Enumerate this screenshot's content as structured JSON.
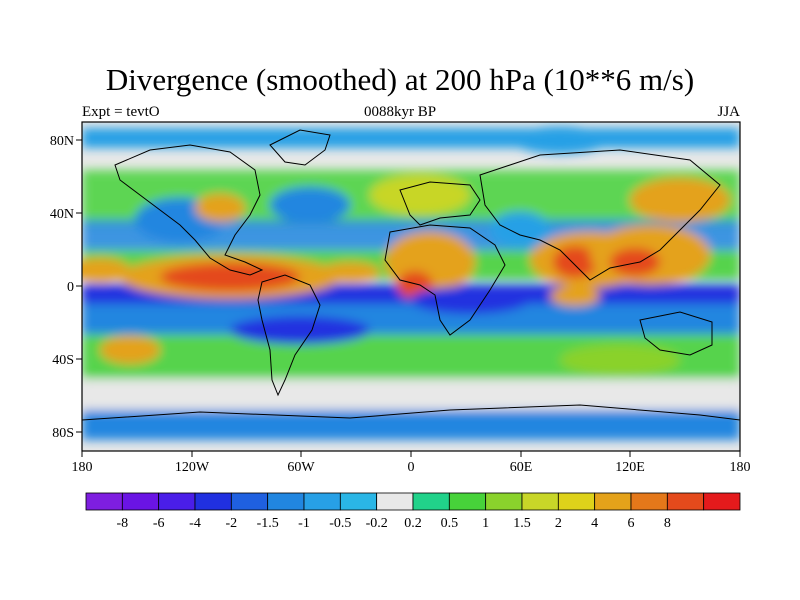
{
  "title": "Divergence (smoothed) at 200 hPa (10**6 m/s)",
  "left_label": "Expt = tevtO",
  "center_label": "0088kyr BP",
  "right_label": "JJA",
  "map": {
    "projection": "cylindrical equidistant",
    "lat_ticks": [
      "80N",
      "40N",
      "0",
      "40S",
      "80S"
    ],
    "lon_ticks": [
      "180",
      "120W",
      "60W",
      "0",
      "60E",
      "120E",
      "180"
    ]
  },
  "colorbar": {
    "colors": [
      "#7e1ee0",
      "#6a14e4",
      "#4a1ee8",
      "#2030e0",
      "#1f60e0",
      "#2186e0",
      "#27a0e6",
      "#2ab6e6",
      "#e8e8e8",
      "#21d28a",
      "#47d23a",
      "#8ad22c",
      "#c8d628",
      "#ded21a",
      "#e4a21a",
      "#e4781a",
      "#e44a1c",
      "#e41a1c"
    ],
    "labels": [
      "-8",
      "-6",
      "-4",
      "-2",
      "-1.5",
      "-1",
      "-0.5",
      "-0.2",
      "0.2",
      "0.5",
      "1",
      "1.5",
      "2",
      "4",
      "6",
      "8"
    ]
  }
}
